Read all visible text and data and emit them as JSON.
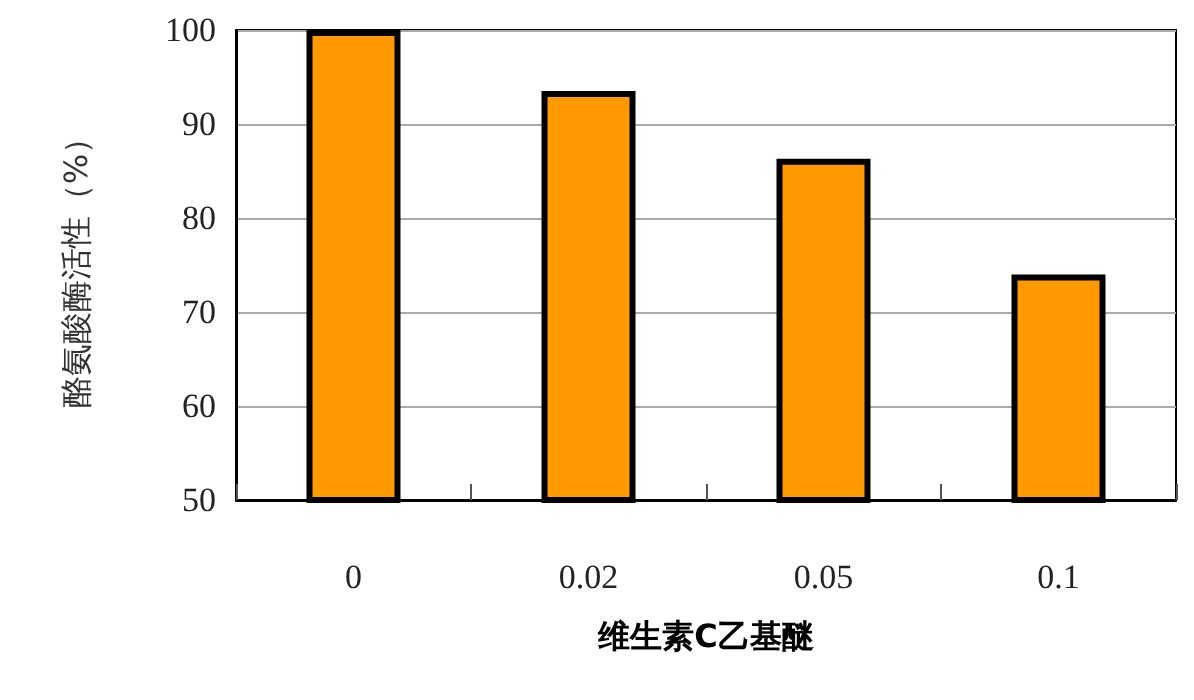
{
  "chart_data": {
    "type": "bar",
    "xlabel": "维生素C乙基醚",
    "ylabel": "酪氨酸酶活性（%）",
    "categories": [
      "0",
      "0.02",
      "0.05",
      "0.1"
    ],
    "values": [
      100,
      93.5,
      86.3,
      74
    ],
    "color": "#ff9900",
    "ylim": [
      50,
      100
    ],
    "yticks": [
      50,
      60,
      70,
      80,
      90,
      100
    ],
    "grid": "y"
  }
}
